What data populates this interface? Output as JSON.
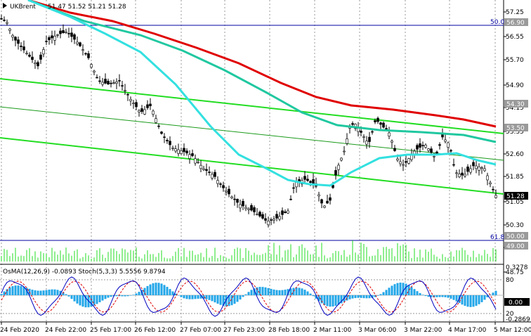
{
  "chart_title": {
    "symbol": "UKBrent",
    "ohlc": "51.47 51.52 51.21 51.28"
  },
  "price_axis": {
    "ticks": [
      "57.25",
      "56.55",
      "55.70",
      "54.90",
      "54.15",
      "53.35",
      "52.60",
      "51.85",
      "51.05",
      "50.30",
      "49.55",
      "48.75"
    ],
    "boxed": [
      {
        "text": "56.90",
        "role": "level-50"
      },
      {
        "text": "54.30",
        "role": "level"
      },
      {
        "text": "53.50",
        "role": "level"
      },
      {
        "text": "51.28",
        "role": "last-price"
      },
      {
        "text": "50.00",
        "role": "level-61.8"
      },
      {
        "text": "49.00",
        "role": "level"
      }
    ]
  },
  "fib_labels": {
    "level_50": "50.0",
    "level_618": "61.8"
  },
  "time_axis": [
    "24 Feb 2020",
    "24 Feb 22:00",
    "25 Feb 17:00",
    "26 Feb 12:00",
    "27 Feb 07:00",
    "27 Feb 23:00",
    "28 Feb 18:00",
    "2 Mar 11:00",
    "3 Mar 06:00",
    "3 Mar 22:00",
    "4 Mar 17:00",
    "5 Mar 12:00"
  ],
  "oscillator": {
    "label": "OsMA(12,26,9) -0.0893  Stoch(5,3,3) 5.5556 9.8794",
    "ticks": [
      "0.3278",
      "0.00",
      "-0.2869"
    ],
    "ref_ticks": [
      "80",
      "20"
    ]
  },
  "colors": {
    "background": "#ffffff",
    "candle": "#000000",
    "ma_red": "#e00000",
    "ma_teal": "#20c8a0",
    "ma_cyan": "#33e0e0",
    "channel_green": "#22dd22",
    "level_blue": "#0000a0",
    "volume_green": "#22dd22",
    "osma_hist": "#22a6e8",
    "stoch_main": "#0000c0",
    "stoch_signal": "#e00000"
  }
}
